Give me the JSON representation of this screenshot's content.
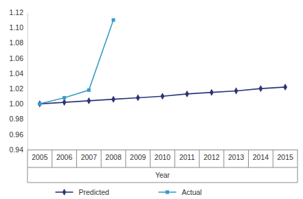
{
  "chart_data": {
    "type": "line",
    "x_label": "Year",
    "categories": [
      "2005",
      "2006",
      "2007",
      "2008",
      "2009",
      "2010",
      "2011",
      "2012",
      "2013",
      "2014",
      "2015"
    ],
    "series": [
      {
        "name": "Predicted",
        "color": "#2b3577",
        "marker": "diamond",
        "line_style": "solid",
        "values": [
          1.0,
          1.002,
          1.004,
          1.006,
          1.008,
          1.01,
          1.013,
          1.015,
          1.017,
          1.02,
          1.022
        ]
      },
      {
        "name": "Actual",
        "color": "#3a9cc8",
        "marker": "square",
        "line_style": "solid",
        "values": [
          1.0,
          1.008,
          1.018,
          1.11,
          null,
          null,
          null,
          null,
          null,
          null,
          null
        ]
      }
    ],
    "ylim": [
      0.94,
      1.12
    ],
    "yticks": [
      0.94,
      0.96,
      0.98,
      {
        "value": 1.0,
        "label": "1.00"
      },
      1.02,
      1.04,
      1.06,
      1.08,
      {
        "value": 1.1,
        "label": "1.10"
      },
      1.12
    ],
    "grid": false,
    "legend": "bottom"
  }
}
